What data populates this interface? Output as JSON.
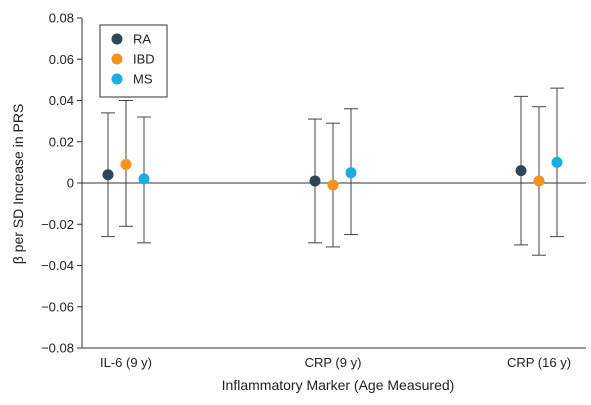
{
  "chart_data": {
    "type": "scatter",
    "categories": [
      "IL-6 (9 y)",
      "CRP (9 y)",
      "CRP (16 y)"
    ],
    "xlabel": "Inflammatory Marker (Age Measured)",
    "ylabel": "β per SD Increase in PRS",
    "ylim": [
      -0.08,
      0.08
    ],
    "yticks": [
      "0.08",
      "0.06",
      "0.04",
      "0.02",
      "0",
      "-0.02",
      "-0.04",
      "-0.06",
      "-0.08"
    ],
    "ytick_values": [
      0.08,
      0.06,
      0.04,
      0.02,
      0,
      -0.02,
      -0.04,
      -0.06,
      -0.08
    ],
    "grid": false,
    "zero_line": true,
    "legend_position": "top-left",
    "series": [
      {
        "name": "RA",
        "color": "#2e4756",
        "values": [
          0.004,
          0.001,
          0.006
        ],
        "lower": [
          -0.026,
          -0.029,
          -0.03
        ],
        "upper": [
          0.034,
          0.031,
          0.042
        ]
      },
      {
        "name": "IBD",
        "color": "#f5921e",
        "values": [
          0.009,
          -0.001,
          0.001
        ],
        "lower": [
          -0.021,
          -0.031,
          -0.035
        ],
        "upper": [
          0.04,
          0.029,
          0.037
        ]
      },
      {
        "name": "MS",
        "color": "#1aace4",
        "values": [
          0.002,
          0.005,
          0.01
        ],
        "lower": [
          -0.029,
          -0.025,
          -0.026
        ],
        "upper": [
          0.032,
          0.036,
          0.046
        ]
      }
    ]
  }
}
